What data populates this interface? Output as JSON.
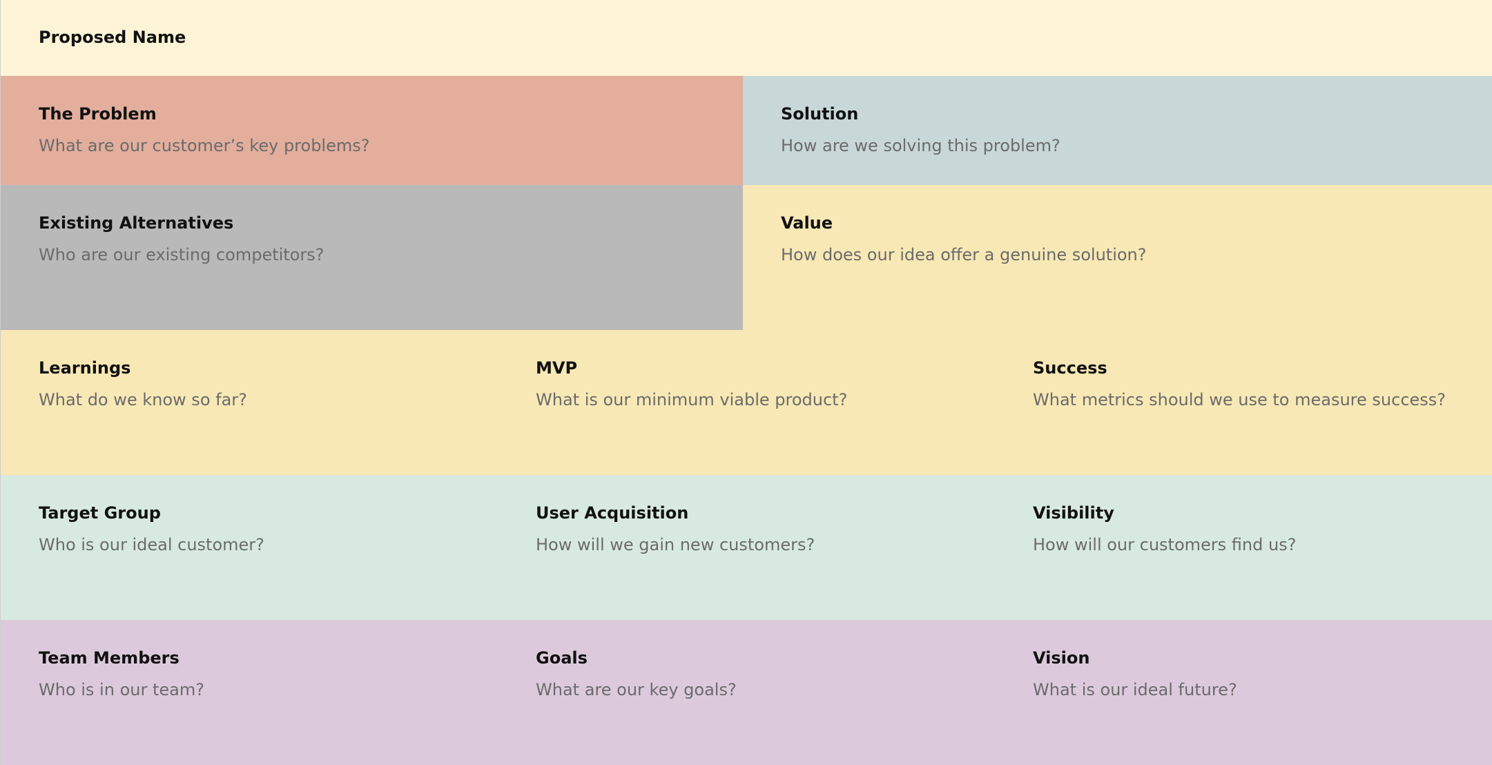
{
  "header": {
    "title": "Proposed Name",
    "prompt": ""
  },
  "sections": {
    "problem": {
      "title": "The Problem",
      "prompt": "What are our customer’s key problems?"
    },
    "solution": {
      "title": "Solution",
      "prompt": "How are we solving this problem?"
    },
    "alternatives": {
      "title": "Existing Alternatives",
      "prompt": "Who are our existing competitors?"
    },
    "value": {
      "title": "Value",
      "prompt": "How does our idea offer a genuine solution?"
    },
    "learnings": {
      "title": "Learnings",
      "prompt": "What do we know so far?"
    },
    "mvp": {
      "title": "MVP",
      "prompt": "What is our minimum viable product?"
    },
    "success": {
      "title": "Success",
      "prompt": "What metrics should we use to measure success?"
    },
    "target_group": {
      "title": "Target Group",
      "prompt": "Who is our ideal customer?"
    },
    "user_acquisition": {
      "title": "User Acquisition",
      "prompt": "How will we gain new customers?"
    },
    "visibility": {
      "title": "Visibility",
      "prompt": "How will our customers find us?"
    },
    "team_members": {
      "title": "Team Members",
      "prompt": "Who is in our team?"
    },
    "goals": {
      "title": "Goals",
      "prompt": "What are our key goals?"
    },
    "vision": {
      "title": "Vision",
      "prompt": "What is our ideal future?"
    }
  },
  "colors": {
    "header": "#fdf4d7",
    "problem": "#e3ae9c",
    "solution": "#c8d7d7",
    "alternatives": "#b9b9b9",
    "value": "#f8e8b5",
    "learning_row": "#f8e8b5",
    "target_row": "#d8eadf",
    "team_row": "#dccadc"
  }
}
